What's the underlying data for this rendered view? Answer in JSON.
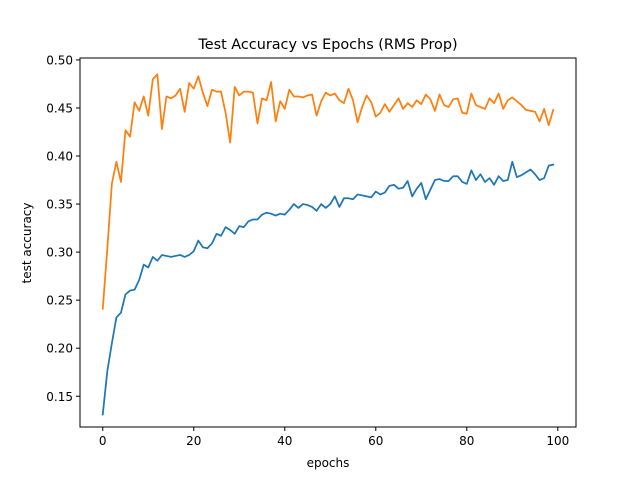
{
  "chart_data": {
    "type": "line",
    "title": "Test Accuracy vs Epochs (RMS Prop)",
    "xlabel": "epochs",
    "ylabel": "test accuracy",
    "xlim": [
      -5,
      104
    ],
    "ylim": [
      0.118,
      0.502
    ],
    "x_ticks": [
      0,
      20,
      40,
      60,
      80,
      100
    ],
    "x_tick_labels": [
      "0",
      "20",
      "40",
      "60",
      "80",
      "100"
    ],
    "y_ticks": [
      0.15,
      0.2,
      0.25,
      0.3,
      0.35,
      0.4,
      0.45,
      0.5
    ],
    "y_tick_labels": [
      "0.15",
      "0.20",
      "0.25",
      "0.30",
      "0.35",
      "0.40",
      "0.45",
      "0.50"
    ],
    "grid": false,
    "legend": false,
    "series": [
      {
        "color": "#1f77b4",
        "x": [
          0,
          1,
          2,
          3,
          4,
          5,
          6,
          7,
          8,
          9,
          10,
          11,
          12,
          13,
          14,
          15,
          16,
          17,
          18,
          19,
          20,
          21,
          22,
          23,
          24,
          25,
          26,
          27,
          28,
          29,
          30,
          31,
          32,
          33,
          34,
          35,
          36,
          37,
          38,
          39,
          40,
          41,
          42,
          43,
          44,
          45,
          46,
          47,
          48,
          49,
          50,
          51,
          52,
          53,
          54,
          55,
          56,
          57,
          58,
          59,
          60,
          61,
          62,
          63,
          64,
          65,
          66,
          67,
          68,
          69,
          70,
          71,
          72,
          73,
          74,
          75,
          76,
          77,
          78,
          79,
          80,
          81,
          82,
          83,
          84,
          85,
          86,
          87,
          88,
          89,
          90,
          91,
          92,
          93,
          94,
          95,
          96,
          97,
          98,
          99
        ],
        "y": [
          0.131,
          0.176,
          0.205,
          0.232,
          0.237,
          0.256,
          0.26,
          0.261,
          0.271,
          0.287,
          0.284,
          0.295,
          0.291,
          0.297,
          0.296,
          0.295,
          0.296,
          0.297,
          0.295,
          0.297,
          0.301,
          0.312,
          0.305,
          0.304,
          0.309,
          0.319,
          0.317,
          0.326,
          0.323,
          0.319,
          0.327,
          0.326,
          0.332,
          0.334,
          0.334,
          0.339,
          0.341,
          0.34,
          0.338,
          0.34,
          0.339,
          0.344,
          0.35,
          0.346,
          0.35,
          0.349,
          0.347,
          0.343,
          0.35,
          0.346,
          0.35,
          0.358,
          0.347,
          0.356,
          0.356,
          0.355,
          0.36,
          0.359,
          0.358,
          0.357,
          0.363,
          0.36,
          0.362,
          0.369,
          0.37,
          0.366,
          0.367,
          0.374,
          0.358,
          0.366,
          0.372,
          0.355,
          0.365,
          0.375,
          0.376,
          0.374,
          0.374,
          0.379,
          0.379,
          0.373,
          0.371,
          0.385,
          0.375,
          0.381,
          0.373,
          0.377,
          0.37,
          0.379,
          0.374,
          0.375,
          0.394,
          0.378,
          0.38,
          0.383,
          0.386,
          0.381,
          0.375,
          0.377,
          0.39,
          0.391
        ]
      },
      {
        "color": "#ff7f0e",
        "x": [
          0,
          1,
          2,
          3,
          4,
          5,
          6,
          7,
          8,
          9,
          10,
          11,
          12,
          13,
          14,
          15,
          16,
          17,
          18,
          19,
          20,
          21,
          22,
          23,
          24,
          25,
          26,
          27,
          28,
          29,
          30,
          31,
          32,
          33,
          34,
          35,
          36,
          37,
          38,
          39,
          40,
          41,
          42,
          43,
          44,
          45,
          46,
          47,
          48,
          49,
          50,
          51,
          52,
          53,
          54,
          55,
          56,
          57,
          58,
          59,
          60,
          61,
          62,
          63,
          64,
          65,
          66,
          67,
          68,
          69,
          70,
          71,
          72,
          73,
          74,
          75,
          76,
          77,
          78,
          79,
          80,
          81,
          82,
          83,
          84,
          85,
          86,
          87,
          88,
          89,
          90,
          91,
          92,
          93,
          94,
          95,
          96,
          97,
          98,
          99
        ],
        "y": [
          0.241,
          0.303,
          0.371,
          0.394,
          0.373,
          0.427,
          0.42,
          0.456,
          0.447,
          0.462,
          0.442,
          0.48,
          0.485,
          0.428,
          0.462,
          0.46,
          0.463,
          0.47,
          0.446,
          0.476,
          0.47,
          0.483,
          0.466,
          0.452,
          0.469,
          0.467,
          0.467,
          0.445,
          0.414,
          0.472,
          0.463,
          0.467,
          0.467,
          0.466,
          0.434,
          0.46,
          0.458,
          0.477,
          0.436,
          0.457,
          0.449,
          0.469,
          0.462,
          0.462,
          0.461,
          0.463,
          0.464,
          0.442,
          0.457,
          0.466,
          0.463,
          0.465,
          0.458,
          0.455,
          0.47,
          0.458,
          0.435,
          0.451,
          0.463,
          0.456,
          0.441,
          0.445,
          0.454,
          0.446,
          0.453,
          0.46,
          0.449,
          0.455,
          0.451,
          0.458,
          0.454,
          0.464,
          0.459,
          0.447,
          0.464,
          0.453,
          0.451,
          0.459,
          0.46,
          0.445,
          0.444,
          0.465,
          0.453,
          0.451,
          0.449,
          0.46,
          0.455,
          0.465,
          0.449,
          0.458,
          0.461,
          0.457,
          0.453,
          0.448,
          0.447,
          0.446,
          0.436,
          0.449,
          0.432,
          0.448
        ]
      }
    ]
  }
}
